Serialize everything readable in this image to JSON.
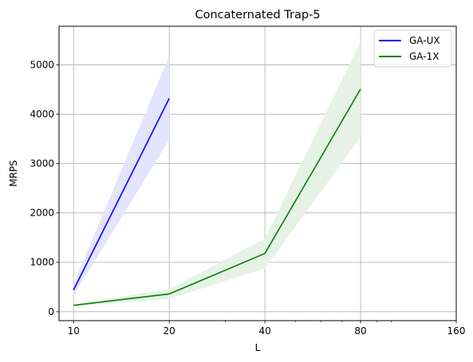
{
  "chart_data": {
    "type": "line",
    "title": "Concaternated Trap-5",
    "xlabel": "L",
    "ylabel": "MRPS",
    "x_scale": "log2",
    "xlim": [
      9,
      160
    ],
    "ylim": [
      -180,
      5780
    ],
    "xticks": [
      10,
      20,
      40,
      80,
      160
    ],
    "xtick_labels": [
      "10",
      "20",
      "40",
      "80",
      "160"
    ],
    "yticks": [
      0,
      1000,
      2000,
      3000,
      4000,
      5000
    ],
    "ytick_labels": [
      "0",
      "1000",
      "2000",
      "3000",
      "4000",
      "5000"
    ],
    "grid": true,
    "legend_position": "top-right",
    "series": [
      {
        "name": "GA-UX",
        "color": "#0000ff",
        "band_color": "#e4e4ff",
        "x": [
          10,
          20
        ],
        "y": [
          440,
          4320
        ],
        "lower": [
          330,
          3480
        ],
        "upper": [
          560,
          5180
        ]
      },
      {
        "name": "GA-1X",
        "color": "#008000",
        "band_color": "#e5f2e5",
        "x": [
          10,
          20,
          40,
          80
        ],
        "y": [
          130,
          360,
          1180,
          4510
        ],
        "lower": [
          110,
          260,
          880,
          3530
        ],
        "upper": [
          150,
          460,
          1480,
          5470
        ]
      }
    ]
  }
}
